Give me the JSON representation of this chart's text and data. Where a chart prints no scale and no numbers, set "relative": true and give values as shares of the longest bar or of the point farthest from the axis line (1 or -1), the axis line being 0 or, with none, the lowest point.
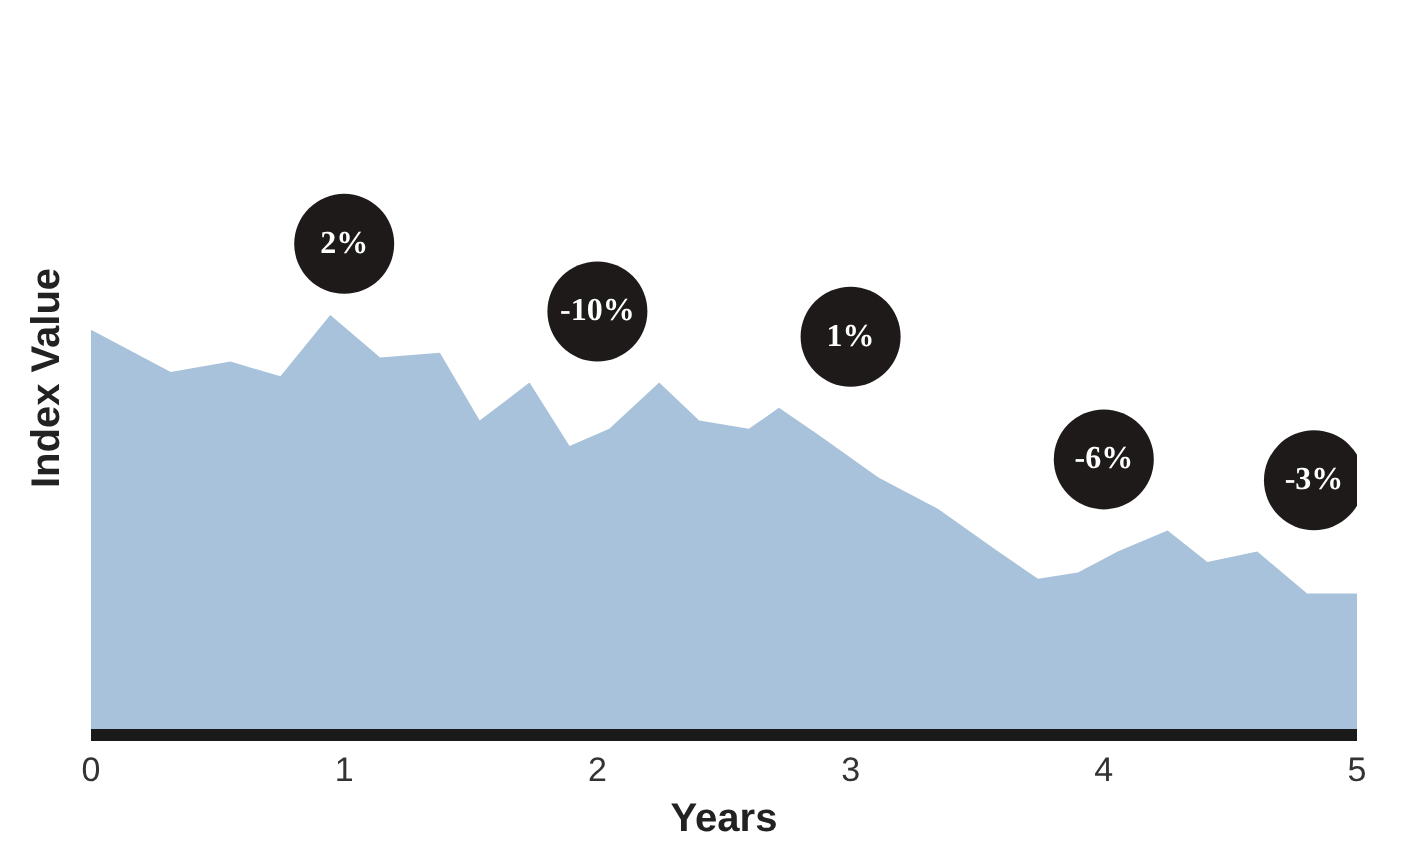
{
  "chart_data": {
    "type": "area",
    "relative": true,
    "xlabel": "Years",
    "ylabel": "Index Value",
    "xlim": [
      0,
      5
    ],
    "xticks": [
      0,
      1,
      2,
      3,
      4,
      5
    ],
    "tick_labels": "x",
    "x": [
      0,
      0.315,
      0.551,
      0.748,
      0.945,
      1.142,
      1.378,
      1.535,
      1.732,
      1.89,
      2.047,
      2.244,
      2.402,
      2.598,
      2.717,
      2.874,
      3.11,
      3.346,
      3.583,
      3.74,
      3.898,
      4.055,
      4.252,
      4.409,
      4.606,
      4.803,
      5.0
    ],
    "series": [
      {
        "color": "#a8c2dc",
        "values": [
          0.965,
          0.864,
          0.889,
          0.854,
          1.0,
          0.899,
          0.91,
          0.749,
          0.839,
          0.688,
          0.729,
          0.839,
          0.749,
          0.729,
          0.779,
          0.714,
          0.613,
          0.538,
          0.437,
          0.372,
          0.387,
          0.437,
          0.487,
          0.412,
          0.437,
          0.337,
          0.337
        ]
      }
    ],
    "annotations": [
      "2%",
      "-10%",
      "1%",
      "-6%",
      "-3%"
    ]
  }
}
